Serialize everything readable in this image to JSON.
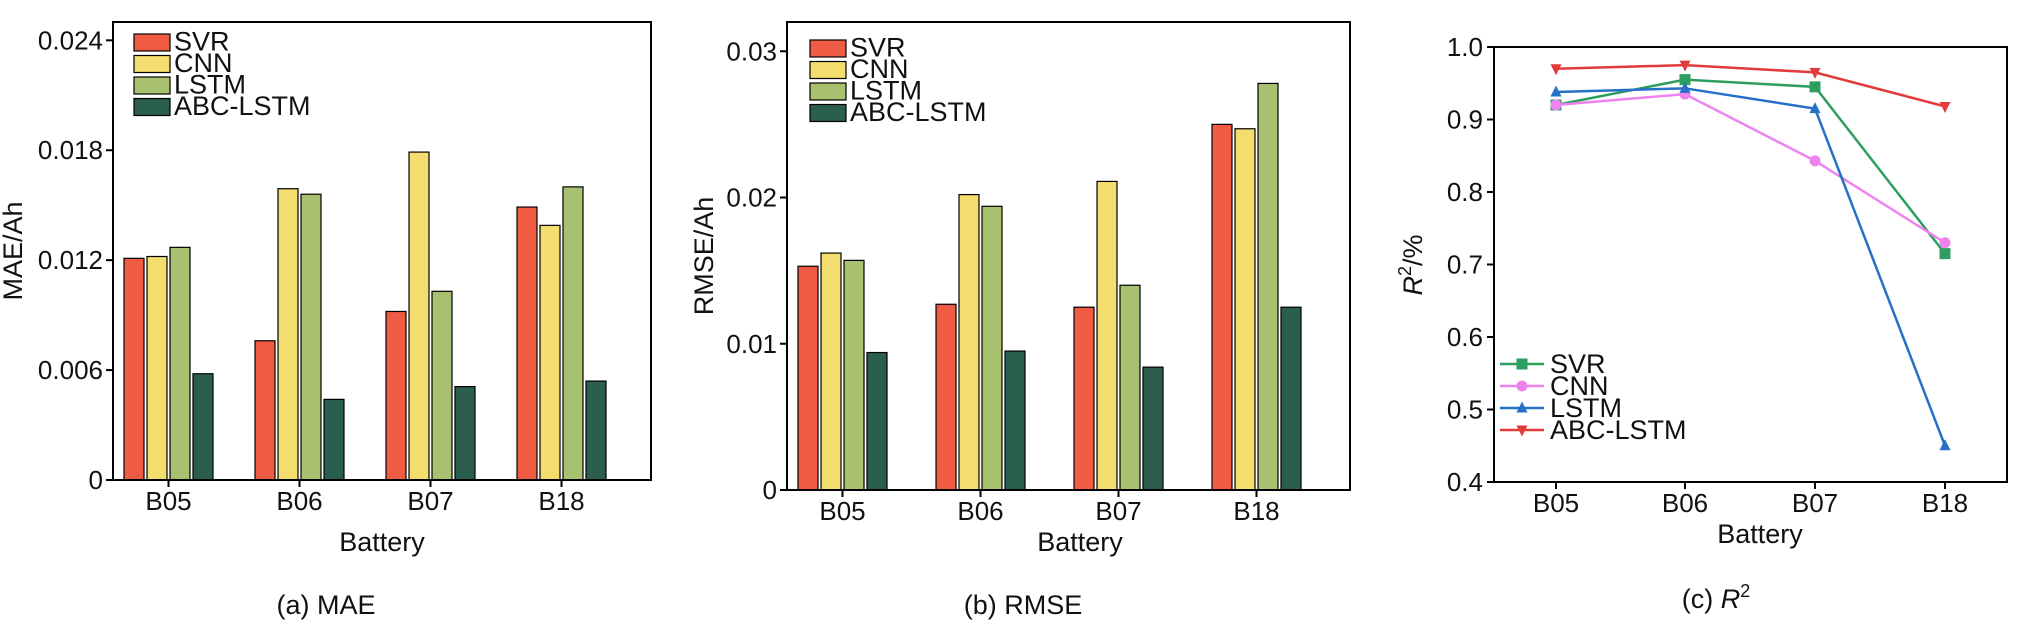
{
  "chart_data": [
    {
      "id": "mae",
      "type": "bar",
      "caption": "(a) MAE",
      "xlabel": "Battery",
      "ylabel": "MAE/Ah",
      "categories": [
        "B05",
        "B06",
        "B07",
        "B18"
      ],
      "ylim": [
        0,
        0.025
      ],
      "yticks": [
        0,
        0.006,
        0.012,
        0.018,
        0.024
      ],
      "ytick_labels": [
        "0",
        "0.006",
        "0.012",
        "0.018",
        "0.024"
      ],
      "series": [
        {
          "name": "SVR",
          "color": "#EF5B43",
          "values": [
            0.0121,
            0.0076,
            0.0092,
            0.0149
          ]
        },
        {
          "name": "CNN",
          "color": "#F3DD6E",
          "values": [
            0.0122,
            0.0159,
            0.0179,
            0.0139
          ]
        },
        {
          "name": "LSTM",
          "color": "#A8C170",
          "values": [
            0.0127,
            0.0156,
            0.0103,
            0.016
          ]
        },
        {
          "name": "ABC-LSTM",
          "color": "#2A5E4E",
          "values": [
            0.0058,
            0.0044,
            0.0051,
            0.0054
          ]
        }
      ],
      "legend": "top-left"
    },
    {
      "id": "rmse",
      "type": "bar",
      "caption": "(b) RMSE",
      "xlabel": "Battery",
      "ylabel": "RMSE/Ah",
      "categories": [
        "B05",
        "B06",
        "B07",
        "B18"
      ],
      "ylim": [
        0,
        0.032
      ],
      "yticks": [
        0,
        0.01,
        0.02,
        0.03
      ],
      "ytick_labels": [
        "0",
        "0.01",
        "0.02",
        "0.03"
      ],
      "series": [
        {
          "name": "SVR",
          "color": "#EF5B43",
          "values": [
            0.0153,
            0.0127,
            0.0125,
            0.025
          ]
        },
        {
          "name": "CNN",
          "color": "#F3DD6E",
          "values": [
            0.0162,
            0.0202,
            0.0211,
            0.0247
          ]
        },
        {
          "name": "LSTM",
          "color": "#A8C170",
          "values": [
            0.0157,
            0.0194,
            0.014,
            0.0278
          ]
        },
        {
          "name": "ABC-LSTM",
          "color": "#2A5E4E",
          "values": [
            0.0094,
            0.0095,
            0.0084,
            0.0125
          ]
        }
      ],
      "legend": "top-left"
    },
    {
      "id": "r2",
      "type": "line",
      "caption_prefix": "(c) ",
      "caption_var": "R",
      "caption_sup": "2",
      "xlabel": "Battery",
      "ylabel_var": "R",
      "ylabel_sup": "2",
      "ylabel_suffix": "/%",
      "categories": [
        "B05",
        "B06",
        "B07",
        "B18"
      ],
      "ylim": [
        0.4,
        1.0
      ],
      "yticks": [
        0.4,
        0.5,
        0.6,
        0.7,
        0.8,
        0.9,
        1.0
      ],
      "ytick_labels": [
        "0.4",
        "0.5",
        "0.6",
        "0.7",
        "0.8",
        "0.9",
        "1.0"
      ],
      "series": [
        {
          "name": "SVR",
          "color": "#2E9E5E",
          "marker": "square",
          "values": [
            0.92,
            0.955,
            0.945,
            0.715
          ]
        },
        {
          "name": "CNN",
          "color": "#EE82EE",
          "marker": "circle",
          "values": [
            0.92,
            0.935,
            0.843,
            0.73
          ]
        },
        {
          "name": "LSTM",
          "color": "#2670C8",
          "marker": "triangle-up",
          "values": [
            0.938,
            0.943,
            0.915,
            0.45
          ]
        },
        {
          "name": "ABC-LSTM",
          "color": "#E23B3B",
          "marker": "triangle-down",
          "values": [
            0.97,
            0.975,
            0.965,
            0.918
          ]
        }
      ],
      "legend": "bottom-left"
    }
  ]
}
